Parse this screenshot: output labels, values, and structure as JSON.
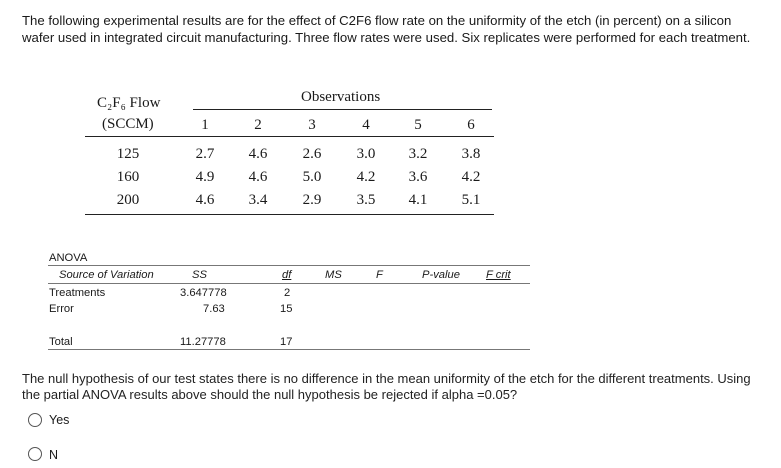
{
  "intro_text": "The following experimental results are for the effect of C2F6 flow rate on the uniformity of the etch (in percent) on a silicon wafer used in integrated circuit manufacturing.  Three flow rates were used.  Six replicates were performed for each treatment.",
  "table1": {
    "flow_label_line1": "C₂F₆ Flow",
    "flow_label_line2": "(SCCM)",
    "observations_header": "Observations",
    "obs_numbers": [
      "1",
      "2",
      "3",
      "4",
      "5",
      "6"
    ],
    "rows": [
      {
        "flow": "125",
        "values": [
          "2.7",
          "4.6",
          "2.6",
          "3.0",
          "3.2",
          "3.8"
        ]
      },
      {
        "flow": "160",
        "values": [
          "4.9",
          "4.6",
          "5.0",
          "4.2",
          "3.6",
          "4.2"
        ]
      },
      {
        "flow": "200",
        "values": [
          "4.6",
          "3.4",
          "2.9",
          "3.5",
          "4.1",
          "5.1"
        ]
      }
    ]
  },
  "anova": {
    "title": "ANOVA",
    "headers": {
      "source": "Source of Variation",
      "ss": "SS",
      "df": "df",
      "ms": "MS",
      "f": "F",
      "pvalue": "P-value",
      "fcrit": "F crit"
    },
    "rows": {
      "treatments": {
        "label": "Treatments",
        "ss": "3.647778",
        "df": "2"
      },
      "error": {
        "label": "Error",
        "ss": "7.63",
        "df": "15"
      },
      "total": {
        "label": "Total",
        "ss": "11.27778",
        "df": "17"
      }
    }
  },
  "question": {
    "text": "The null hypothesis of our test states there is no difference in the mean uniformity of the etch for the different treatments. Using the partial ANOVA results above should the null hypothesis be rejected if alpha =0.05?",
    "options": [
      "Yes",
      "N"
    ]
  }
}
